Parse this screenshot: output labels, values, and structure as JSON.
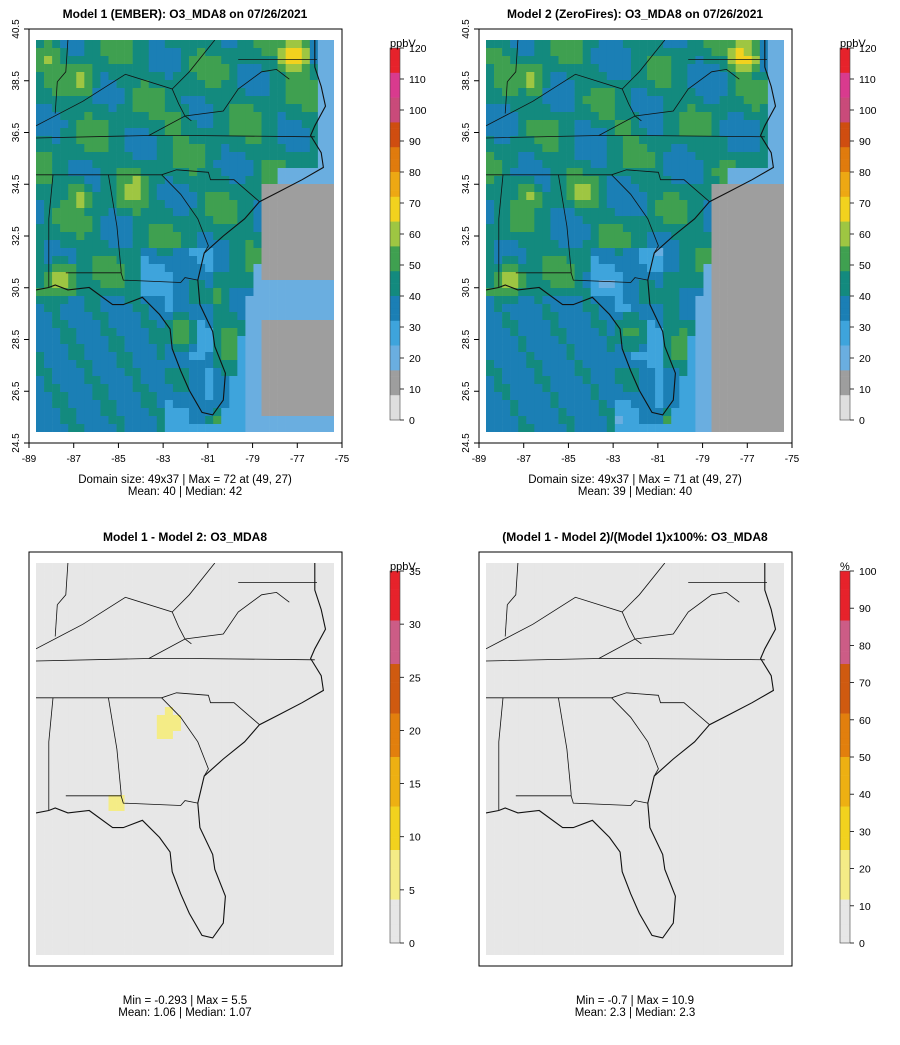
{
  "figure": {
    "panels": [
      {
        "title": "Model 1 (EMBER): O3_MDA8 on 07/26/2021",
        "kind": "conc",
        "unit": "ppbV",
        "colorbar_ticks": [
          "0",
          "10",
          "20",
          "30",
          "40",
          "50",
          "60",
          "70",
          "80",
          "90",
          "100",
          "110",
          "120"
        ],
        "caption_line1": "Domain size: 49x37 | Max = 72 at (49, 27)",
        "caption_line2": "Mean: 40 |  Median: 42"
      },
      {
        "title": "Model 2 (ZeroFires): O3_MDA8 on 07/26/2021",
        "kind": "conc",
        "unit": "ppbV",
        "colorbar_ticks": [
          "0",
          "10",
          "20",
          "30",
          "40",
          "50",
          "60",
          "70",
          "80",
          "90",
          "100",
          "110",
          "120"
        ],
        "caption_line1": "Domain size: 49x37 | Max = 71 at (49, 27)",
        "caption_line2": "Mean: 39 |  Median: 40"
      },
      {
        "title": "Model 1 - Model 2: O3_MDA8",
        "kind": "diff",
        "unit": "ppbV",
        "colorbar_ticks": [
          "0",
          "5",
          "10",
          "15",
          "20",
          "25",
          "30",
          "35"
        ],
        "caption_line1": "Min = -0.293 | Max = 5.5",
        "caption_line2": "Mean: 1.06 |  Median: 1.07"
      },
      {
        "title": "(Model 1 - Model 2)/(Model 1)x100%: O3_MDA8",
        "kind": "pct",
        "unit": "%",
        "colorbar_ticks": [
          "0",
          "10",
          "20",
          "30",
          "40",
          "50",
          "60",
          "70",
          "80",
          "90",
          "100"
        ],
        "caption_line1": "Min = -0.7 | Max = 10.9",
        "caption_line2": "Mean: 2.3 |  Median: 2.3"
      }
    ],
    "colors": {
      "scale": [
        "#dedede",
        "#9e9e9e",
        "#6aaee0",
        "#3ea4dc",
        "#1b7fb5",
        "#138a7e",
        "#3fa050",
        "#9ec642",
        "#f2d21e",
        "#eda813",
        "#e07b0d",
        "#cf4d10",
        "#c94a7a",
        "#d93a8e",
        "#e7222b"
      ],
      "diff_scale": [
        "#e7e7e7",
        "#f4ec86",
        "#f2d21e",
        "#edb012",
        "#e27f0d",
        "#cf5a10",
        "#cc5c86",
        "#e7222b"
      ],
      "ocean": "#3d9ed8"
    }
  },
  "chart_data": [
    {
      "type": "heatmap",
      "title": "Model 1 (EMBER): O3_MDA8 on 07/26/2021",
      "x_ticks": [
        "-89",
        "-87",
        "-85",
        "-83",
        "-81",
        "-79",
        "-77",
        "-75"
      ],
      "y_ticks": [
        "24.5",
        "26.5",
        "28.5",
        "30.5",
        "32.5",
        "34.5",
        "36.5",
        "38.5",
        "40.5"
      ],
      "xlim": [
        -89,
        -75
      ],
      "ylim": [
        24.5,
        40.5
      ],
      "colorbar": {
        "label": "ppbV",
        "min": 0,
        "max": 120
      },
      "stats": {
        "grid": "49x37",
        "max": 72,
        "max_at": [
          49,
          27
        ],
        "mean": 40,
        "median": 42
      },
      "hotspots": [
        {
          "lon": -76.9,
          "lat": 39.8,
          "value": 72
        },
        {
          "lon": -84.4,
          "lat": 34.3,
          "value": 68
        },
        {
          "lon": -86.9,
          "lat": 38.9,
          "value": 64
        },
        {
          "lon": -87.8,
          "lat": 30.7,
          "value": 65
        },
        {
          "lon": -87.0,
          "lat": 34.0,
          "value": 62
        },
        {
          "lon": -82.5,
          "lat": 37.0,
          "value": 58
        },
        {
          "lon": -88.5,
          "lat": 39.8,
          "value": 60
        },
        {
          "lon": -82.2,
          "lat": 28.6,
          "value": 56
        }
      ]
    },
    {
      "type": "heatmap",
      "title": "Model 2 (ZeroFires): O3_MDA8 on 07/26/2021",
      "x_ticks": [
        "-89",
        "-87",
        "-85",
        "-83",
        "-81",
        "-79",
        "-77",
        "-75"
      ],
      "y_ticks": [
        "24.5",
        "26.5",
        "28.5",
        "30.5",
        "32.5",
        "34.5",
        "36.5",
        "38.5",
        "40.5"
      ],
      "xlim": [
        -89,
        -75
      ],
      "ylim": [
        24.5,
        40.5
      ],
      "colorbar": {
        "label": "ppbV",
        "min": 0,
        "max": 120
      },
      "stats": {
        "grid": "49x37",
        "max": 71,
        "max_at": [
          49,
          27
        ],
        "mean": 39,
        "median": 40
      },
      "hotspots": [
        {
          "lon": -76.9,
          "lat": 39.8,
          "value": 71
        },
        {
          "lon": -84.4,
          "lat": 34.3,
          "value": 66
        },
        {
          "lon": -86.9,
          "lat": 38.9,
          "value": 62
        },
        {
          "lon": -87.8,
          "lat": 30.7,
          "value": 63
        },
        {
          "lon": -87.0,
          "lat": 34.0,
          "value": 60
        },
        {
          "lon": -82.5,
          "lat": 37.0,
          "value": 56
        },
        {
          "lon": -88.5,
          "lat": 39.8,
          "value": 58
        },
        {
          "lon": -82.2,
          "lat": 28.6,
          "value": 54
        }
      ]
    },
    {
      "type": "heatmap",
      "title": "Model 1 - Model 2: O3_MDA8",
      "xlim": [
        -89,
        -75
      ],
      "ylim": [
        24.5,
        40.5
      ],
      "colorbar": {
        "label": "ppbV",
        "min": 0,
        "max": 35
      },
      "stats": {
        "min": -0.293,
        "max": 5.5,
        "mean": 1.06,
        "median": 1.07
      },
      "hotspots": [
        {
          "lon": -86.5,
          "lat": 29.5,
          "value": 4.0
        },
        {
          "lon": -87.5,
          "lat": 28.5,
          "value": 3.5
        },
        {
          "lon": -82.8,
          "lat": 33.9,
          "value": 5.5
        },
        {
          "lon": -83.0,
          "lat": 29.8,
          "value": 4.5
        },
        {
          "lon": -85.2,
          "lat": 30.6,
          "value": 5.0
        },
        {
          "lon": -87.8,
          "lat": 40.0,
          "value": 2.5
        }
      ]
    },
    {
      "type": "heatmap",
      "title": "(Model 1 - Model 2)/(Model 1)x100%: O3_MDA8",
      "xlim": [
        -89,
        -75
      ],
      "ylim": [
        24.5,
        40.5
      ],
      "colorbar": {
        "label": "%",
        "min": 0,
        "max": 100
      },
      "stats": {
        "min": -0.7,
        "max": 10.9,
        "mean": 2.3,
        "median": 2.3
      },
      "hotspots": [
        {
          "lon": -86.5,
          "lat": 29.5,
          "value": 8.0
        },
        {
          "lon": -87.5,
          "lat": 28.0,
          "value": 7.0
        },
        {
          "lon": -82.8,
          "lat": 33.9,
          "value": 10.9
        },
        {
          "lon": -85.2,
          "lat": 30.6,
          "value": 9.0
        },
        {
          "lon": -78.5,
          "lat": 25.8,
          "value": 5.0
        }
      ]
    }
  ]
}
